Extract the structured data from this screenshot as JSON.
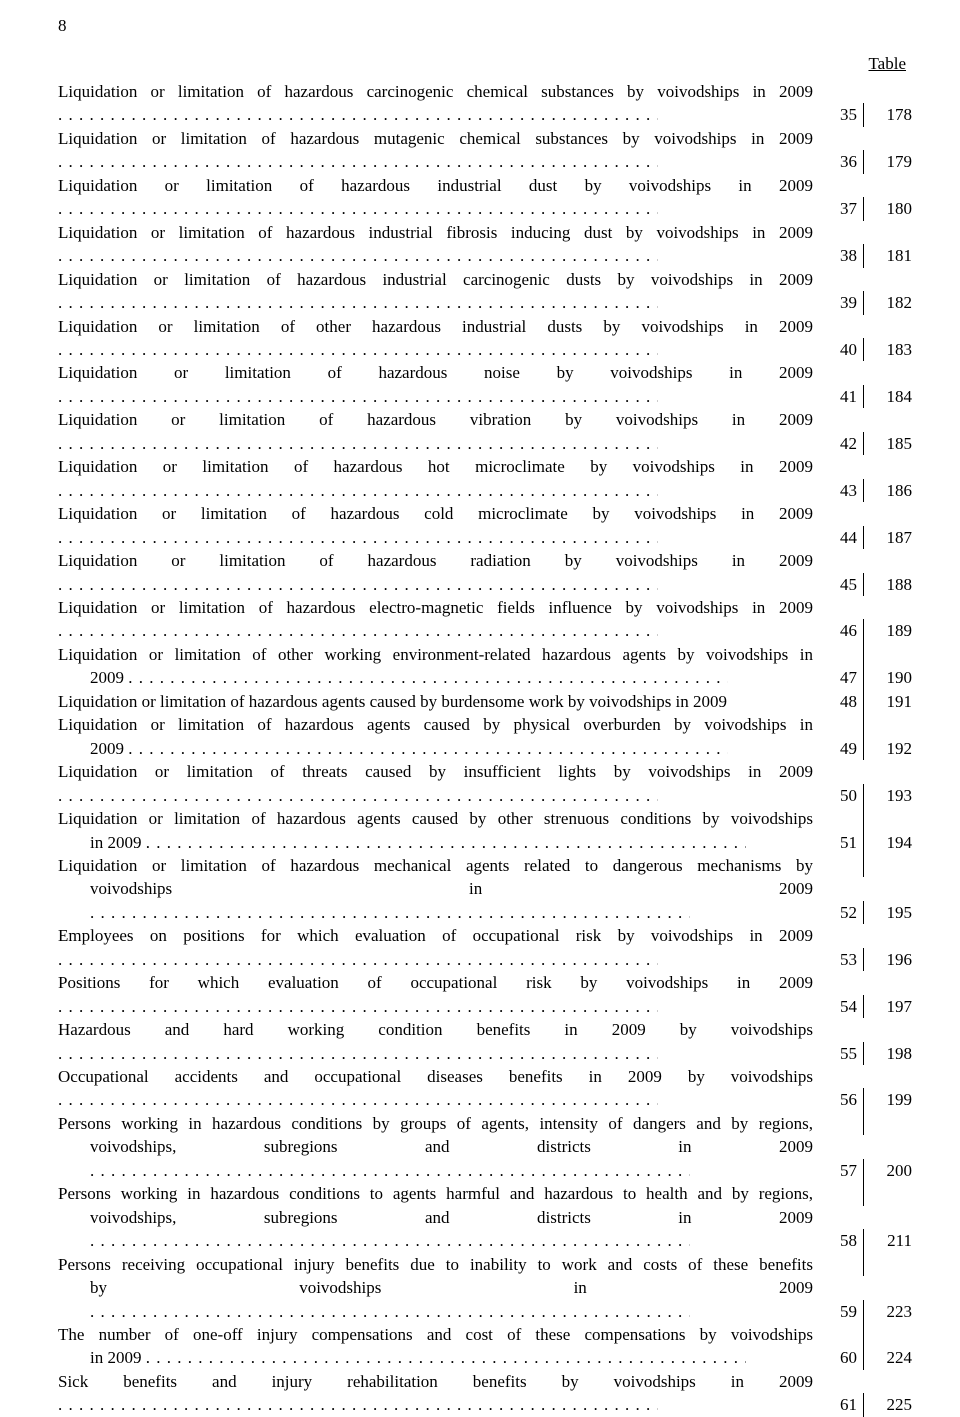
{
  "page_number": "8",
  "table_label": "Table",
  "entries": [
    {
      "title": "Liquidation or limitation of hazardous carcinogenic chemical substances by voivodships in 2009",
      "a": "35",
      "b": "178"
    },
    {
      "title": "Liquidation or limitation of hazardous mutagenic chemical substances by voivodships in 2009",
      "a": "36",
      "b": "179"
    },
    {
      "title": "Liquidation or limitation of hazardous industrial dust by voivodships in 2009",
      "a": "37",
      "b": "180"
    },
    {
      "title": "Liquidation or limitation of hazardous industrial fibrosis inducing dust by voivodships in 2009",
      "a": "38",
      "b": "181"
    },
    {
      "title": "Liquidation or limitation of hazardous industrial carcinogenic dusts by voivodships in 2009",
      "a": "39",
      "b": "182"
    },
    {
      "title": "Liquidation or limitation of other hazardous industrial dusts by voivodships in 2009",
      "a": "40",
      "b": "183"
    },
    {
      "title": "Liquidation or limitation of hazardous noise by voivodships in 2009",
      "a": "41",
      "b": "184"
    },
    {
      "title": "Liquidation or limitation of hazardous vibration by voivodships in 2009",
      "a": "42",
      "b": "185"
    },
    {
      "title": "Liquidation or limitation of hazardous hot microclimate by voivodships in 2009",
      "a": "43",
      "b": "186"
    },
    {
      "title": "Liquidation or limitation of hazardous cold microclimate by voivodships in 2009",
      "a": "44",
      "b": "187"
    },
    {
      "title": "Liquidation or limitation of hazardous radiation by voivodships in 2009",
      "a": "45",
      "b": "188"
    },
    {
      "title": "Liquidation or limitation of hazardous electro-magnetic fields influence by voivodships in 2009",
      "a": "46",
      "b": "189"
    },
    {
      "title": "Liquidation or limitation of other working environment-related hazardous agents by voivodships in",
      "cont": "2009",
      "a": "47",
      "b": "190"
    },
    {
      "title": "Liquidation or limitation of hazardous agents caused by burdensome work by voivodships in 2009",
      "a": "48",
      "b": "191",
      "noleader": true
    },
    {
      "title": "Liquidation or limitation of hazardous agents caused by physical overburden by voivodships in",
      "cont": "2009",
      "a": "49",
      "b": "192"
    },
    {
      "title": "Liquidation or limitation of threats caused by insufficient lights by voivodships in 2009",
      "a": "50",
      "b": "193"
    },
    {
      "title": "Liquidation or limitation of hazardous agents caused by other strenuous conditions by voivodships",
      "cont": "in 2009",
      "a": "51",
      "b": "194"
    },
    {
      "title": "Liquidation or limitation of hazardous mechanical agents related to dangerous mechanisms by",
      "cont": "voivodships in 2009",
      "a": "52",
      "b": "195"
    },
    {
      "title": "Employees on positions for which evaluation of occupational risk by voivodships in 2009",
      "a": "53",
      "b": "196"
    },
    {
      "title": "Positions for which evaluation of occupational risk by voivodships in 2009",
      "a": "54",
      "b": "197"
    },
    {
      "title": "Hazardous and hard working condition benefits in 2009 by voivodships",
      "a": "55",
      "b": "198"
    },
    {
      "title": "Occupational accidents and occupational diseases benefits in 2009 by voivodships",
      "a": "56",
      "b": "199"
    },
    {
      "title": "Persons working in hazardous conditions by groups of agents, intensity of dangers and by regions,",
      "cont": "voivodships, subregions and districts in 2009",
      "a": "57",
      "b": "200"
    },
    {
      "title": "Persons working in hazardous conditions to agents harmful and hazardous to health and by regions,",
      "cont": "voivodships, subregions and districts in 2009",
      "a": "58",
      "b": "211"
    },
    {
      "title": "Persons receiving occupational injury benefits due to inability to work and costs of these benefits",
      "cont": "by voivodships in 2009",
      "a": "59",
      "b": "223"
    },
    {
      "title": "The number of one-off injury compensations and cost of these compensations by voivodships",
      "cont": "in 2009",
      "a": "60",
      "b": "224"
    },
    {
      "title": "Sick benefits and injury rehabilitation benefits by voivodships in 2009",
      "a": "61",
      "b": "225"
    }
  ]
}
